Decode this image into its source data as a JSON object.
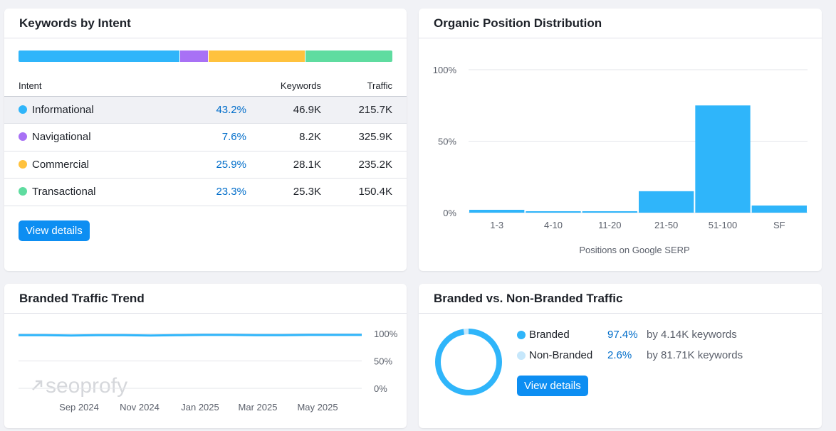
{
  "intent_card": {
    "title": "Keywords by Intent",
    "columns": {
      "intent": "Intent",
      "keywords": "Keywords",
      "traffic": "Traffic"
    },
    "rows": [
      {
        "label": "Informational",
        "percent": "43.2%",
        "share": 43.2,
        "keywords": "46.9K",
        "traffic": "215.7K",
        "color": "#2fb5fa"
      },
      {
        "label": "Navigational",
        "percent": "7.6%",
        "share": 7.6,
        "keywords": "8.2K",
        "traffic": "325.9K",
        "color": "#a871f5"
      },
      {
        "label": "Commercial",
        "percent": "25.9%",
        "share": 25.9,
        "keywords": "28.1K",
        "traffic": "235.2K",
        "color": "#ffc23e"
      },
      {
        "label": "Transactional",
        "percent": "23.3%",
        "share": 23.3,
        "keywords": "25.3K",
        "traffic": "150.4K",
        "color": "#5fdca0"
      }
    ],
    "button": "View details"
  },
  "position_card": {
    "title": "Organic Position Distribution"
  },
  "chart_data": [
    {
      "type": "bar",
      "title": "Organic Position Distribution",
      "categories": [
        "1-3",
        "4-10",
        "11-20",
        "21-50",
        "51-100",
        "SF"
      ],
      "values": [
        2,
        1,
        1,
        15,
        75,
        5
      ],
      "xlabel": "Positions on Google SERP",
      "ylabel": "",
      "ylim": [
        0,
        100
      ],
      "yticks": [
        "0%",
        "50%",
        "100%"
      ],
      "ytick_values": [
        0,
        50,
        100
      ],
      "bar_color": "#2fb5fa"
    },
    {
      "type": "line",
      "title": "Branded Traffic Trend",
      "x_labels": [
        "Sep 2024",
        "Nov 2024",
        "Jan 2025",
        "Mar 2025",
        "May 2025"
      ],
      "values": [
        97,
        97,
        96.5,
        97,
        97,
        96.5,
        97,
        97.5,
        97.5,
        97,
        97,
        97.5,
        97.5,
        97.5
      ],
      "ylim": [
        0,
        100
      ],
      "yticks": [
        "0%",
        "50%",
        "100%"
      ],
      "ytick_values": [
        0,
        50,
        100
      ],
      "line_color": "#2fb5fa"
    },
    {
      "type": "pie",
      "title": "Branded vs. Non-Branded Traffic",
      "labels": [
        "Branded",
        "Non-Branded"
      ],
      "values": [
        97.4,
        2.6
      ],
      "colors": [
        "#2fb5fa",
        "#c6e7fb"
      ]
    }
  ],
  "trend_card": {
    "title": "Branded Traffic Trend",
    "watermark": "seoprofy"
  },
  "branded_card": {
    "title": "Branded vs. Non-Branded Traffic",
    "rows": [
      {
        "label": "Branded",
        "percent": "97.4%",
        "note": "by 4.14K keywords",
        "color": "#2fb5fa"
      },
      {
        "label": "Non-Branded",
        "percent": "2.6%",
        "note": "by 81.71K keywords",
        "color": "#c6e7fb"
      }
    ],
    "button": "View details"
  }
}
